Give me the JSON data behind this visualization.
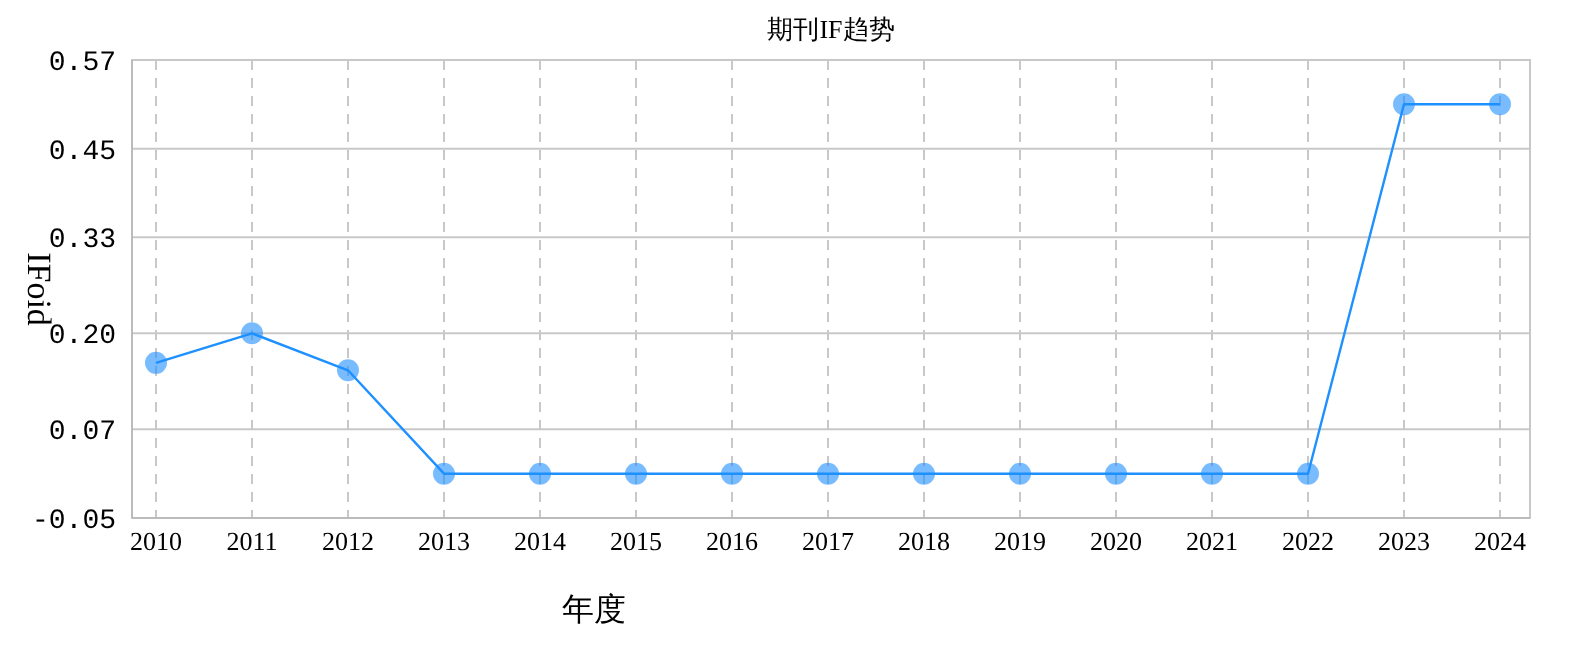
{
  "chart_data": {
    "type": "line",
    "title": "期刊IF趋势",
    "xlabel": "年度",
    "ylabel": "IFoid",
    "categories": [
      "2010",
      "2011",
      "2012",
      "2013",
      "2014",
      "2015",
      "2016",
      "2017",
      "2018",
      "2019",
      "2020",
      "2021",
      "2022",
      "2023",
      "2024"
    ],
    "series": [
      {
        "color": "#1e90ff",
        "values": [
          0.16,
          0.2,
          0.15,
          0.01,
          0.01,
          0.01,
          0.01,
          0.01,
          0.01,
          0.01,
          0.01,
          0.01,
          0.01,
          0.51,
          0.51
        ]
      }
    ],
    "ylim": [
      -0.05,
      0.57
    ],
    "yticks": [
      {
        "value": -0.05,
        "label": "-0.05"
      },
      0.07,
      {
        "value": 0.2,
        "label": "0.20"
      },
      0.33,
      0.45,
      0.57
    ],
    "grid": true,
    "marker": "circle",
    "line_style": "solid"
  }
}
